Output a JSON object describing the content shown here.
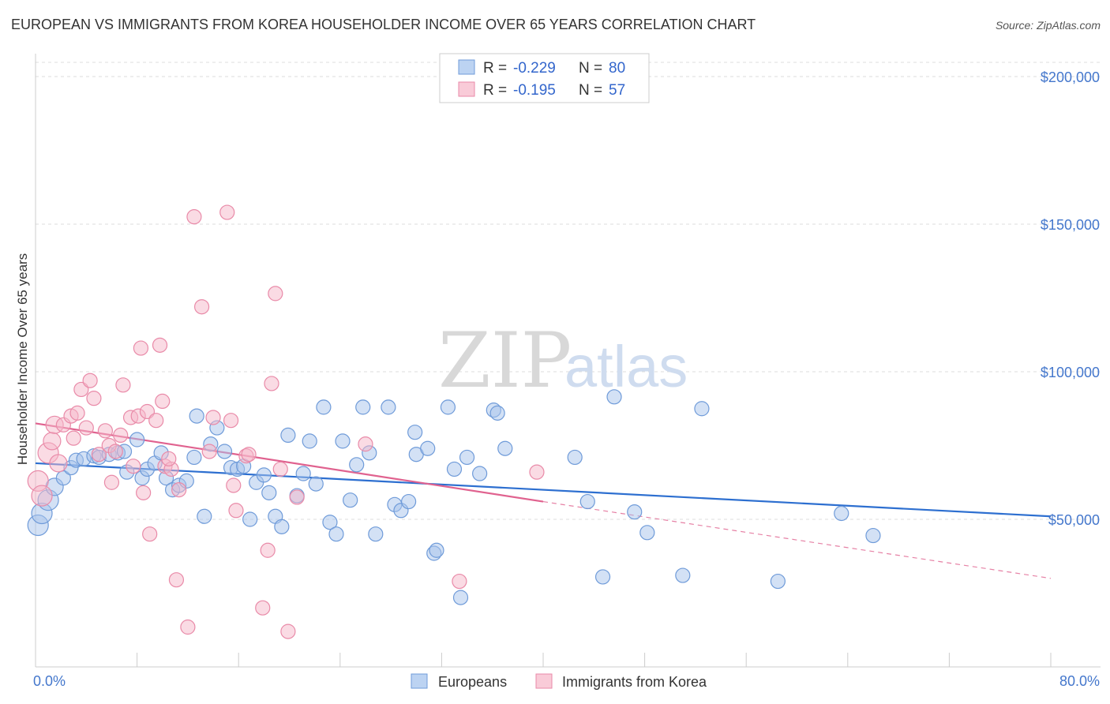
{
  "title": "EUROPEAN VS IMMIGRANTS FROM KOREA HOUSEHOLDER INCOME OVER 65 YEARS CORRELATION CHART",
  "source": "Source: ZipAtlas.com",
  "watermark": {
    "part1": "ZIP",
    "part2": "atlas"
  },
  "colors": {
    "blue_fill": "#a8c4ec",
    "blue_stroke": "#6f9bd9",
    "blue_line": "#2d6fd0",
    "pink_fill": "#f6b7ca",
    "pink_stroke": "#e98aa8",
    "pink_line": "#e0628f",
    "tick_text": "#4477cc",
    "grid": "#dddddd"
  },
  "legend": {
    "rows": [
      {
        "r_label": "R =",
        "r_value": "-0.229",
        "n_label": "N =",
        "n_value": "80"
      },
      {
        "r_label": "R =",
        "r_value": "-0.195",
        "n_label": "N =",
        "n_value": "57"
      }
    ]
  },
  "chart_data": {
    "type": "scatter",
    "title": "EUROPEAN VS IMMIGRANTS FROM KOREA HOUSEHOLDER INCOME OVER 65 YEARS CORRELATION CHART",
    "xlabel": "",
    "ylabel": "Householder Income Over 65 years",
    "xlim": [
      0,
      80
    ],
    "ylim": [
      0,
      210000
    ],
    "x_tick_labels": [
      "0.0%",
      "80.0%"
    ],
    "y_ticks": [
      50000,
      100000,
      150000,
      200000
    ],
    "y_tick_labels": [
      "$50,000",
      "$100,000",
      "$150,000",
      "$200,000"
    ],
    "grid": true,
    "legend_position": "top-center",
    "series": [
      {
        "name": "Europeans",
        "trend": {
          "x": [
            0,
            80
          ],
          "y": [
            69000,
            51000
          ],
          "dashed_extension": false
        },
        "points": [
          [
            0.2,
            48000
          ],
          [
            0.5,
            52000
          ],
          [
            1.0,
            56500
          ],
          [
            1.5,
            61000
          ],
          [
            2.2,
            64000
          ],
          [
            2.8,
            67500
          ],
          [
            3.2,
            70000
          ],
          [
            3.8,
            70500
          ],
          [
            4.6,
            71500
          ],
          [
            5.0,
            71000
          ],
          [
            5.8,
            72000
          ],
          [
            6.5,
            72500
          ],
          [
            7.0,
            73000
          ],
          [
            7.2,
            66000
          ],
          [
            8.0,
            77000
          ],
          [
            8.4,
            64000
          ],
          [
            8.8,
            67000
          ],
          [
            9.4,
            69000
          ],
          [
            9.9,
            72500
          ],
          [
            10.3,
            64000
          ],
          [
            10.8,
            60000
          ],
          [
            11.3,
            61500
          ],
          [
            11.9,
            63000
          ],
          [
            12.5,
            71000
          ],
          [
            12.7,
            85000
          ],
          [
            13.3,
            51000
          ],
          [
            13.8,
            75500
          ],
          [
            14.3,
            81000
          ],
          [
            14.9,
            73000
          ],
          [
            15.4,
            67500
          ],
          [
            15.9,
            67000
          ],
          [
            16.4,
            68000
          ],
          [
            16.9,
            50000
          ],
          [
            17.4,
            62500
          ],
          [
            18.0,
            65000
          ],
          [
            18.4,
            59000
          ],
          [
            18.9,
            51000
          ],
          [
            19.4,
            47500
          ],
          [
            19.9,
            78500
          ],
          [
            20.6,
            58000
          ],
          [
            21.1,
            65500
          ],
          [
            21.6,
            76500
          ],
          [
            22.1,
            62000
          ],
          [
            22.7,
            88000
          ],
          [
            23.2,
            49000
          ],
          [
            23.7,
            45000
          ],
          [
            24.2,
            76500
          ],
          [
            24.8,
            56500
          ],
          [
            25.3,
            68500
          ],
          [
            25.8,
            88000
          ],
          [
            26.3,
            72500
          ],
          [
            26.8,
            45000
          ],
          [
            27.8,
            88000
          ],
          [
            28.3,
            55000
          ],
          [
            28.8,
            53000
          ],
          [
            29.4,
            56000
          ],
          [
            29.9,
            79500
          ],
          [
            30.0,
            72000
          ],
          [
            30.9,
            74000
          ],
          [
            31.4,
            38500
          ],
          [
            31.6,
            39500
          ],
          [
            32.5,
            88000
          ],
          [
            33.5,
            23500
          ],
          [
            34.0,
            71000
          ],
          [
            35.0,
            65500
          ],
          [
            36.1,
            87000
          ],
          [
            36.4,
            86000
          ],
          [
            37.0,
            74000
          ],
          [
            42.5,
            71000
          ],
          [
            43.5,
            56000
          ],
          [
            44.7,
            30500
          ],
          [
            45.6,
            91500
          ],
          [
            47.2,
            52500
          ],
          [
            48.2,
            45500
          ],
          [
            51.0,
            31000
          ],
          [
            52.5,
            87500
          ],
          [
            58.5,
            29000
          ],
          [
            63.5,
            52000
          ],
          [
            66.0,
            44500
          ],
          [
            33.0,
            67000
          ]
        ]
      },
      {
        "name": "Immigrants from Korea",
        "trend": {
          "x": [
            0,
            40
          ],
          "y": [
            82500,
            56000
          ],
          "dashed_extension": true,
          "extension_to": [
            80,
            30000
          ]
        },
        "points": [
          [
            0.2,
            63000
          ],
          [
            0.5,
            58000
          ],
          [
            1.0,
            72500
          ],
          [
            1.3,
            76500
          ],
          [
            1.5,
            82000
          ],
          [
            1.8,
            69000
          ],
          [
            2.2,
            82000
          ],
          [
            2.8,
            85000
          ],
          [
            3.0,
            77500
          ],
          [
            3.3,
            86000
          ],
          [
            3.6,
            94000
          ],
          [
            4.0,
            81000
          ],
          [
            4.3,
            97000
          ],
          [
            4.6,
            91000
          ],
          [
            5.0,
            72000
          ],
          [
            5.5,
            80000
          ],
          [
            5.8,
            75000
          ],
          [
            6.0,
            62500
          ],
          [
            6.3,
            73000
          ],
          [
            6.7,
            78500
          ],
          [
            6.9,
            95500
          ],
          [
            7.5,
            84500
          ],
          [
            7.7,
            68000
          ],
          [
            8.1,
            85000
          ],
          [
            8.3,
            108000
          ],
          [
            8.5,
            59000
          ],
          [
            8.8,
            86500
          ],
          [
            9.0,
            45000
          ],
          [
            9.5,
            83500
          ],
          [
            9.8,
            109000
          ],
          [
            10.0,
            90000
          ],
          [
            10.2,
            68000
          ],
          [
            10.7,
            67000
          ],
          [
            11.1,
            29500
          ],
          [
            11.3,
            60000
          ],
          [
            12.0,
            13500
          ],
          [
            12.5,
            152500
          ],
          [
            13.1,
            122000
          ],
          [
            13.7,
            73000
          ],
          [
            14.0,
            84500
          ],
          [
            15.1,
            154000
          ],
          [
            15.4,
            83500
          ],
          [
            15.6,
            61500
          ],
          [
            15.8,
            53000
          ],
          [
            16.6,
            71500
          ],
          [
            16.8,
            72000
          ],
          [
            18.3,
            39500
          ],
          [
            18.6,
            96000
          ],
          [
            18.9,
            126500
          ],
          [
            19.3,
            67000
          ],
          [
            17.9,
            20000
          ],
          [
            19.9,
            12000
          ],
          [
            20.6,
            57500
          ],
          [
            26.0,
            75500
          ],
          [
            33.4,
            29000
          ],
          [
            39.5,
            66000
          ],
          [
            10.5,
            70500
          ]
        ]
      }
    ]
  }
}
